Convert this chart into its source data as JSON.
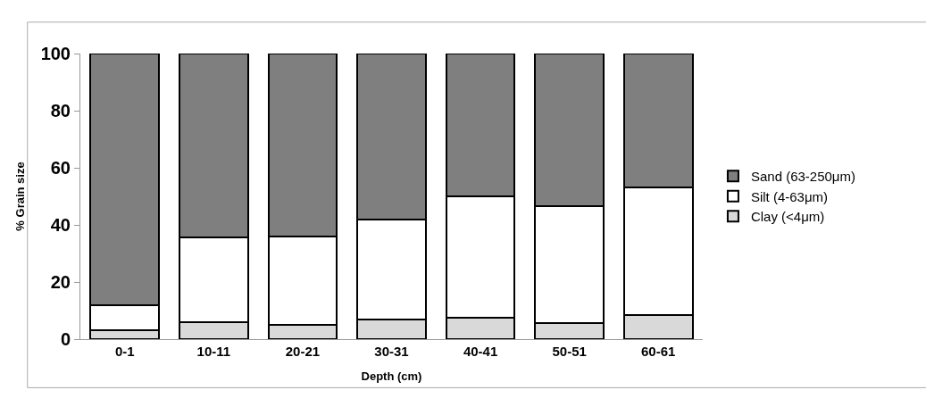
{
  "chart_data": {
    "type": "bar",
    "stacked": true,
    "xlabel": "Depth (cm)",
    "ylabel": "% Grain size",
    "categories": [
      "0-1",
      "10-11",
      "20-21",
      "30-31",
      "40-41",
      "50-51",
      "60-61"
    ],
    "series": [
      {
        "name": "Clay (<4μm)",
        "color": "#d9d9d9",
        "values": [
          3,
          6,
          5,
          7,
          7.5,
          5.5,
          8.5
        ]
      },
      {
        "name": "Silt (4-63μm)",
        "color": "#ffffff",
        "values": [
          9,
          29.5,
          31,
          35,
          42.5,
          41,
          44.5
        ]
      },
      {
        "name": "Sand (63-250μm)",
        "color": "#7f7f7f",
        "values": [
          88,
          64.5,
          64,
          58,
          50,
          53.5,
          47
        ]
      }
    ],
    "ylim": [
      0,
      100
    ],
    "yticks": [
      0,
      20,
      40,
      60,
      80,
      100
    ],
    "legend": "right"
  }
}
